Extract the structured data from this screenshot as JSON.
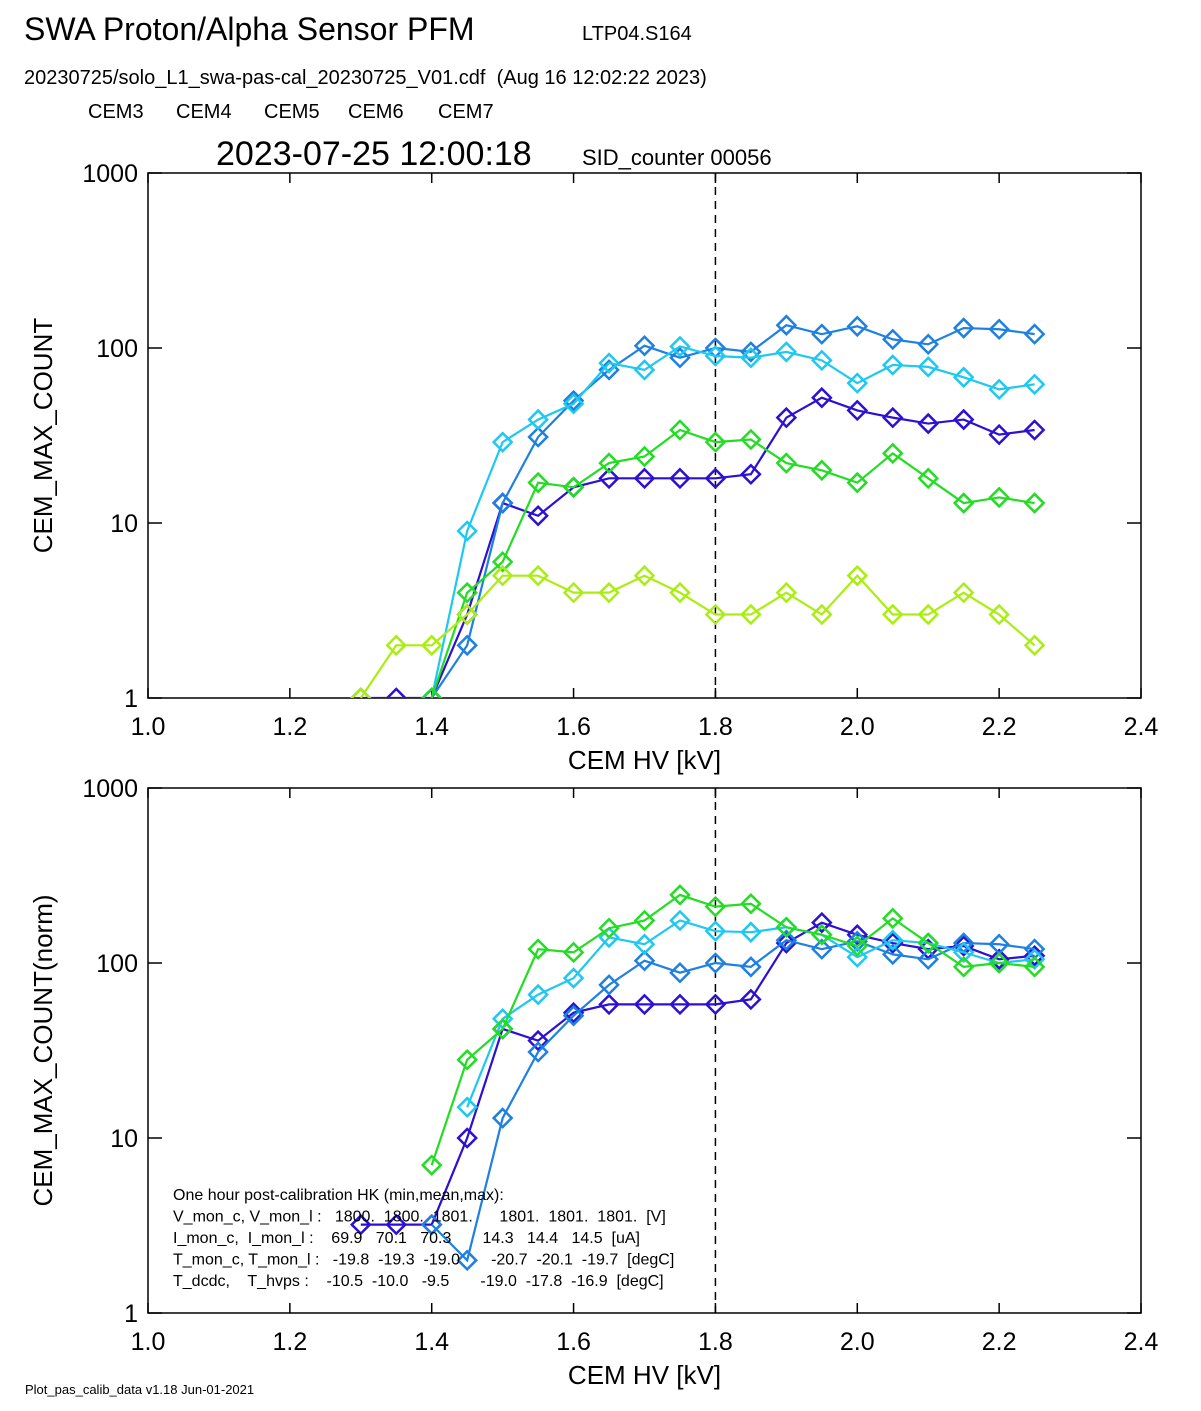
{
  "header": {
    "title": "SWA Proton/Alpha Sensor PFM",
    "code": "LTP04.S164",
    "file": "20230725/solo_L1_swa-pas-cal_20230725_V01.cdf  (Aug 16 12:02:22 2023)"
  },
  "footer": "Plot_pas_calib_data v1.18 Jun-01-2021",
  "chart_data": [
    {
      "type": "line",
      "title": "2023-07-25 12:00:18",
      "subtitle": "SID_counter 00056",
      "x_label": "CEM HV [kV]",
      "y_label": "CEM_MAX_COUNT",
      "log_y": true,
      "marker": "diamond",
      "vline": 1.8,
      "x": [
        1.3,
        1.35,
        1.4,
        1.45,
        1.5,
        1.55,
        1.6,
        1.65,
        1.7,
        1.75,
        1.8,
        1.85,
        1.9,
        1.95,
        2.0,
        2.05,
        2.1,
        2.15,
        2.2,
        2.25
      ],
      "xlim": [
        1.0,
        2.4
      ],
      "xticks": [
        {
          "value": 1.0,
          "label": "1.0"
        },
        {
          "value": 1.2,
          "label": "1.2"
        },
        {
          "value": 1.4,
          "label": "1.4"
        },
        {
          "value": 1.6,
          "label": "1.6"
        },
        {
          "value": 1.8,
          "label": "1.8"
        },
        {
          "value": 2.0,
          "label": "2.0"
        },
        {
          "value": 2.2,
          "label": "2.2"
        },
        {
          "value": 2.4,
          "label": "2.4"
        }
      ],
      "ylim": [
        1,
        1000
      ],
      "yticks": [
        1,
        10,
        100,
        1000
      ],
      "series": [
        {
          "name": "CEM3",
          "color": "#2d10d2",
          "values": [
            1,
            1,
            1,
            3,
            13,
            11,
            16,
            18,
            18,
            18,
            18,
            19,
            40,
            52,
            44,
            40,
            37,
            39,
            32,
            34
          ]
        },
        {
          "name": "CEM4",
          "color": "#1e80e0",
          "values": [
            null,
            null,
            1,
            2,
            13,
            31,
            50,
            75,
            103,
            88,
            100,
            95,
            135,
            120,
            133,
            112,
            105,
            130,
            128,
            120
          ]
        },
        {
          "name": "CEM5",
          "color": "#1ec8f0",
          "values": [
            null,
            null,
            1,
            9,
            29,
            39,
            48,
            82,
            75,
            102,
            90,
            88,
            95,
            85,
            63,
            80,
            78,
            68,
            58,
            62
          ]
        },
        {
          "name": "CEM6",
          "color": "#22dd22",
          "values": [
            null,
            null,
            1,
            4,
            6,
            17,
            16,
            22,
            24,
            34,
            29,
            30,
            22,
            20,
            17,
            25,
            18,
            13,
            14,
            13
          ]
        },
        {
          "name": "CEM7",
          "color": "#aaee11",
          "values": [
            1,
            2,
            2,
            3,
            5,
            5,
            4,
            4,
            5,
            4,
            3,
            3,
            4,
            3,
            5,
            3,
            3,
            4,
            3,
            2
          ]
        }
      ]
    },
    {
      "type": "line",
      "x_label": "CEM HV [kV]",
      "y_label": "CEM_MAX_COUNT(norm)",
      "log_y": true,
      "marker": "diamond",
      "vline": 1.8,
      "x": [
        1.3,
        1.35,
        1.4,
        1.45,
        1.5,
        1.55,
        1.6,
        1.65,
        1.7,
        1.75,
        1.8,
        1.85,
        1.9,
        1.95,
        2.0,
        2.05,
        2.1,
        2.15,
        2.2,
        2.25
      ],
      "xlim": [
        1.0,
        2.4
      ],
      "xticks": [
        {
          "value": 1.0,
          "label": "1.0"
        },
        {
          "value": 1.2,
          "label": "1.2"
        },
        {
          "value": 1.4,
          "label": "1.4"
        },
        {
          "value": 1.6,
          "label": "1.6"
        },
        {
          "value": 1.8,
          "label": "1.8"
        },
        {
          "value": 2.0,
          "label": "2.0"
        },
        {
          "value": 2.2,
          "label": "2.2"
        },
        {
          "value": 2.4,
          "label": "2.4"
        }
      ],
      "ylim": [
        1,
        1000
      ],
      "yticks": [
        1,
        10,
        100,
        1000
      ],
      "series": [
        {
          "name": "CEM3",
          "color": "#2d10d2",
          "values": [
            3.2,
            3.2,
            3.2,
            10,
            42,
            36,
            52,
            58,
            58,
            58,
            58,
            62,
            130,
            170,
            145,
            130,
            120,
            125,
            105,
            110
          ]
        },
        {
          "name": "CEM4",
          "color": "#1e80e0",
          "values": [
            null,
            null,
            3.2,
            2,
            13,
            31,
            50,
            75,
            103,
            88,
            100,
            95,
            135,
            120,
            133,
            112,
            105,
            130,
            128,
            120
          ]
        },
        {
          "name": "CEM5",
          "color": "#1ec8f0",
          "values": [
            null,
            null,
            null,
            15,
            48,
            66,
            82,
            140,
            128,
            175,
            152,
            150,
            160,
            145,
            108,
            135,
            130,
            115,
            100,
            105
          ]
        },
        {
          "name": "CEM6",
          "color": "#22dd22",
          "values": [
            null,
            null,
            7,
            28,
            42,
            120,
            115,
            158,
            175,
            245,
            210,
            218,
            160,
            145,
            125,
            180,
            130,
            95,
            100,
            95
          ]
        }
      ],
      "annotations": [
        "One hour post-calibration HK (min,mean,max):",
        "V_mon_c, V_mon_l :   1800.  1800.  1801.      1801.  1801.  1801.  [V]",
        "I_mon_c,  I_mon_l :    69.9   70.1   70.3       14.3   14.4   14.5  [uA]",
        "T_mon_c, T_mon_l :   -19.8  -19.3  -19.0       -20.7  -20.1  -19.7  [degC]",
        "T_dcdc,    T_hvps :    -10.5  -10.0   -9.5       -19.0  -17.8  -16.9  [degC]"
      ]
    }
  ]
}
